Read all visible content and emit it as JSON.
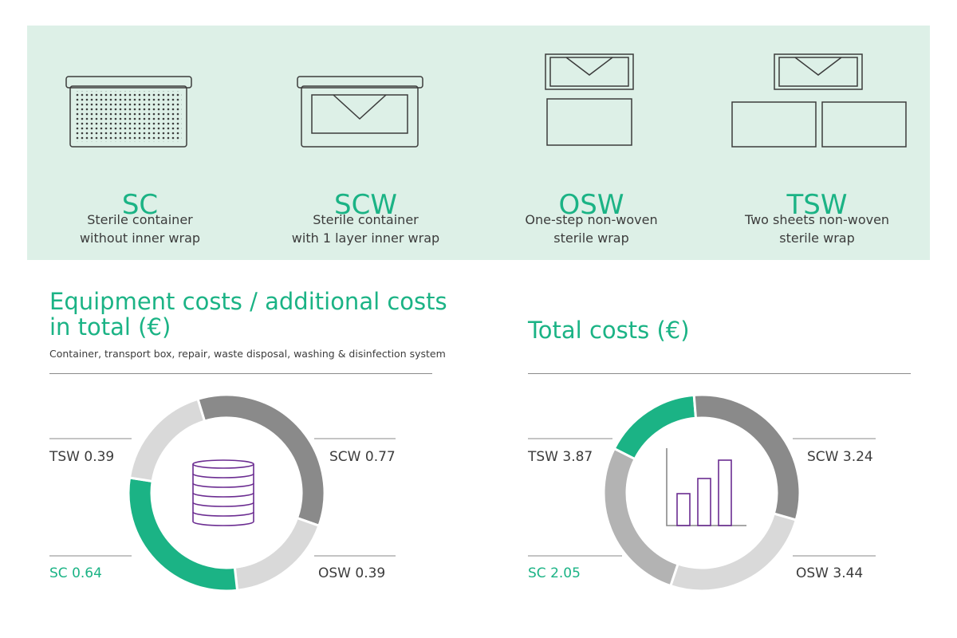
{
  "colors": {
    "accent": "#1bb385",
    "panel": "#ddf0e7",
    "dark": "#8a8a8a",
    "mid": "#b3b3b3",
    "light": "#d9d9d9",
    "icon": "#6b2c91"
  },
  "methods": [
    {
      "code": "SC",
      "line1": "Sterile container",
      "line2": "without inner wrap",
      "icon": "container-icon"
    },
    {
      "code": "SCW",
      "line1": "Sterile container",
      "line2": "with 1 layer inner wrap",
      "icon": "container-wrap-icon"
    },
    {
      "code": "OSW",
      "line1": "One-step non-woven",
      "line2": "sterile wrap",
      "icon": "one-step-wrap-icon"
    },
    {
      "code": "TSW",
      "line1": "Two sheets non-woven",
      "line2": "sterile wrap",
      "icon": "two-sheet-wrap-icon"
    }
  ],
  "equipment": {
    "title_line1": "Equipment costs / additional costs",
    "title_line2": "in total (€)",
    "subtitle": "Container, transport box, repair, waste disposal, washing & disinfection system",
    "center_icon": "coin-stack-icon"
  },
  "total": {
    "title": "Total costs (€)",
    "center_icon": "bar-chart-icon"
  },
  "chart_data": [
    {
      "type": "pie",
      "title": "Equipment costs / additional costs in total (€)",
      "categories": [
        "SCW",
        "OSW",
        "SC",
        "TSW"
      ],
      "values": [
        0.77,
        0.39,
        0.64,
        0.39
      ],
      "labels": [
        "SCW 0.77",
        "OSW 0.39",
        "SC 0.64",
        "TSW 0.39"
      ],
      "colors": [
        "#8a8a8a",
        "#d9d9d9",
        "#1bb385",
        "#d9d9d9"
      ]
    },
    {
      "type": "pie",
      "title": "Total costs (€)",
      "categories": [
        "SCW",
        "OSW",
        "SC",
        "TSW"
      ],
      "values": [
        3.24,
        3.44,
        2.05,
        3.87
      ],
      "labels": [
        "SCW 3.24",
        "OSW 3.44",
        "SC 2.05",
        "TSW 3.87"
      ],
      "colors": [
        "#d9d9d9",
        "#b3b3b3",
        "#1bb385",
        "#8a8a8a"
      ]
    }
  ]
}
